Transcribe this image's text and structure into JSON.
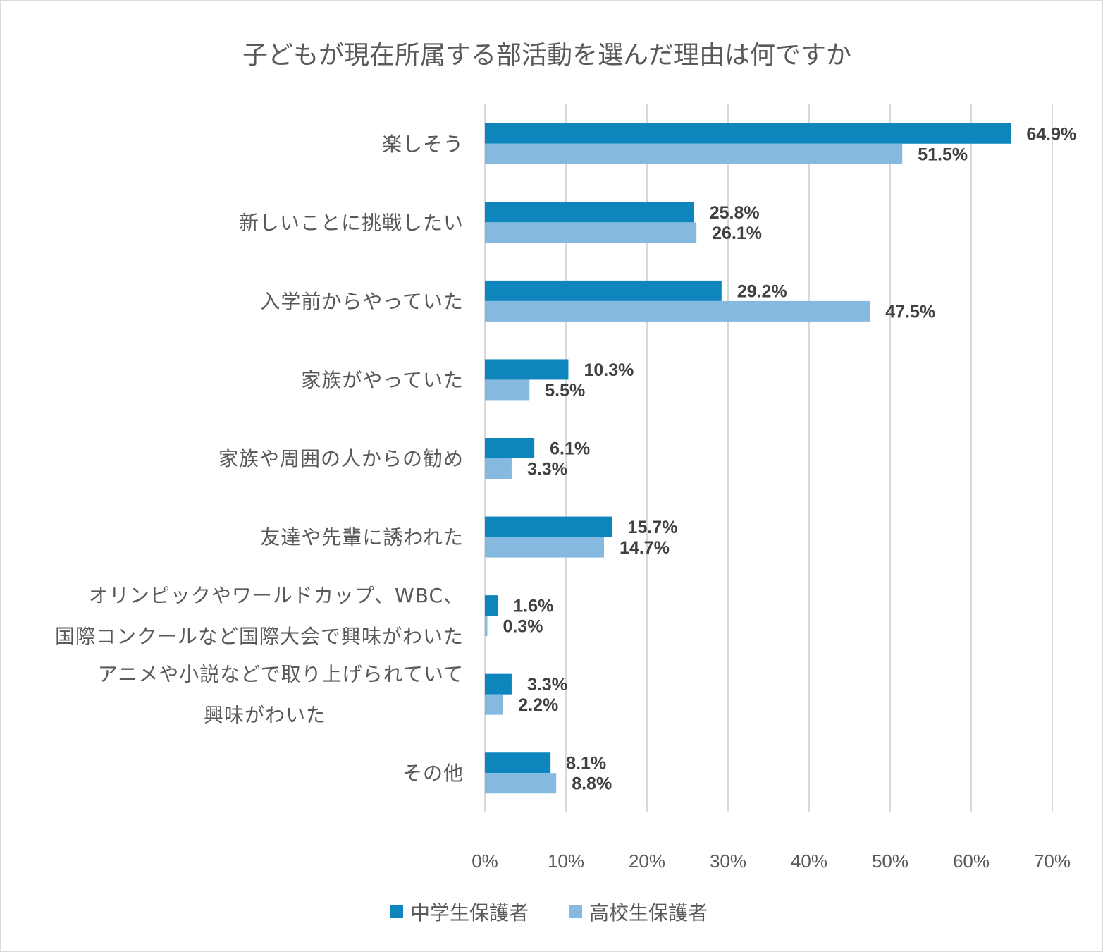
{
  "chart_data": {
    "type": "bar",
    "orientation": "horizontal",
    "title": "子どもが現在所属する部活動を選んだ理由は何ですか",
    "categories": [
      [
        "楽しそう"
      ],
      [
        "新しいことに挑戦したい"
      ],
      [
        "入学前からやっていた"
      ],
      [
        "家族がやっていた"
      ],
      [
        "家族や周囲の人からの勧め"
      ],
      [
        "友達や先輩に誘われた"
      ],
      [
        "オリンピックやワールドカップ、WBC、",
        "国際コンクールなど国際大会で興味がわいた"
      ],
      [
        "アニメや小説などで取り上げられていて",
        "興味がわいた"
      ],
      [
        "その他"
      ]
    ],
    "series": [
      {
        "name": "中学生保護者",
        "color": "#0e86bd",
        "values": [
          64.9,
          25.8,
          29.2,
          10.3,
          6.1,
          15.7,
          1.6,
          3.3,
          8.1
        ],
        "labels": [
          "64.9%",
          "25.8%",
          "29.2%",
          "10.3%",
          "6.1%",
          "15.7%",
          "1.6%",
          "3.3%",
          "8.1%"
        ]
      },
      {
        "name": "高校生保護者",
        "color": "#85b9e0",
        "values": [
          51.5,
          26.1,
          47.5,
          5.5,
          3.3,
          14.7,
          0.3,
          2.2,
          8.8
        ],
        "labels": [
          "51.5%",
          "26.1%",
          "47.5%",
          "5.5%",
          "3.3%",
          "14.7%",
          "0.3%",
          "2.2%",
          "8.8%"
        ]
      }
    ],
    "xlim": [
      0,
      70
    ],
    "xticks": [
      0,
      10,
      20,
      30,
      40,
      50,
      60,
      70
    ],
    "xtick_labels": [
      "0%",
      "10%",
      "20%",
      "30%",
      "40%",
      "50%",
      "60%",
      "70%"
    ],
    "grid": true,
    "legend_position": "bottom"
  }
}
